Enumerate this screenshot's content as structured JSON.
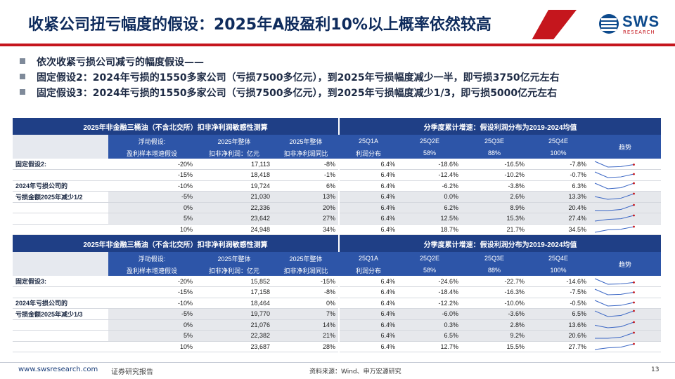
{
  "title": "收紧公司扭亏幅度的假设：2025年A股盈利10%以上概率依然较高",
  "logo": {
    "word": "SWS",
    "sub": "RESEARCH"
  },
  "bullets": [
    "依次收紧亏损公司减亏的幅度假设——",
    "固定假设2：2024年亏损的1550多家公司（亏损7500多亿元），到2025年亏损幅度减少一半，即亏损3750亿元左右",
    "固定假设3：2024年亏损的1550多家公司（亏损7500多亿元），到2025年亏损幅度减少1/3，即亏损5000亿元左右"
  ],
  "tables": [
    {
      "caption_left": "2025年非金融三桶油（不含北交所）扣非净利润敏感性测算",
      "caption_right": "分季度累计增速：假设利润分布为2019-2024均值",
      "headers_top": [
        "浮动假设:",
        "2025年整体",
        "2025年整体",
        "25Q1A",
        "25Q2E",
        "25Q3E",
        "25Q4E",
        "趋势"
      ],
      "headers_bottom": [
        "盈利样本增速假设",
        "扣非净利润：亿元",
        "扣非净利润同比",
        "利润分布",
        "58%",
        "88%",
        "100%",
        ""
      ],
      "side_labels": [
        "固定假设2:",
        "2024年亏损公司的",
        "亏损金额2025年减少1/2"
      ],
      "rows": [
        {
          "assump": "-20%",
          "profit": "17,113",
          "yoy": "-8%",
          "q1": "6.4%",
          "q2": "-18.6%",
          "q3": "-16.5%",
          "q4": "-7.8%"
        },
        {
          "assump": "-15%",
          "profit": "18,418",
          "yoy": "-1%",
          "q1": "6.4%",
          "q2": "-12.4%",
          "q3": "-10.2%",
          "q4": "-0.7%"
        },
        {
          "assump": "-10%",
          "profit": "19,724",
          "yoy": "6%",
          "q1": "6.4%",
          "q2": "-6.2%",
          "q3": "-3.8%",
          "q4": "6.3%"
        },
        {
          "assump": "-5%",
          "profit": "21,030",
          "yoy": "13%",
          "q1": "6.4%",
          "q2": "0.0%",
          "q3": "2.6%",
          "q4": "13.3%"
        },
        {
          "assump": "0%",
          "profit": "22,336",
          "yoy": "20%",
          "q1": "6.4%",
          "q2": "6.2%",
          "q3": "8.9%",
          "q4": "20.4%"
        },
        {
          "assump": "5%",
          "profit": "23,642",
          "yoy": "27%",
          "q1": "6.4%",
          "q2": "12.5%",
          "q3": "15.3%",
          "q4": "27.4%"
        },
        {
          "assump": "10%",
          "profit": "24,948",
          "yoy": "34%",
          "q1": "6.4%",
          "q2": "18.7%",
          "q3": "21.7%",
          "q4": "34.5%"
        }
      ]
    },
    {
      "caption_left": "2025年非金融三桶油（不含北交所）扣非净利润敏感性测算",
      "caption_right": "分季度累计增速：假设利润分布为2019-2024均值",
      "headers_top": [
        "浮动假设:",
        "2025年整体",
        "2025年整体",
        "25Q1A",
        "25Q2E",
        "25Q3E",
        "25Q4E",
        "趋势"
      ],
      "headers_bottom": [
        "盈利样本增速假设",
        "扣非净利润：亿元",
        "扣非净利润同比",
        "利润分布",
        "58%",
        "88%",
        "100%",
        ""
      ],
      "side_labels": [
        "固定假设3:",
        "2024年亏损公司的",
        "亏损金额2025年减少1/3"
      ],
      "rows": [
        {
          "assump": "-20%",
          "profit": "15,852",
          "yoy": "-15%",
          "q1": "6.4%",
          "q2": "-24.6%",
          "q3": "-22.7%",
          "q4": "-14.6%"
        },
        {
          "assump": "-15%",
          "profit": "17,158",
          "yoy": "-8%",
          "q1": "6.4%",
          "q2": "-18.4%",
          "q3": "-16.3%",
          "q4": "-7.5%"
        },
        {
          "assump": "-10%",
          "profit": "18,464",
          "yoy": "0%",
          "q1": "6.4%",
          "q2": "-12.2%",
          "q3": "-10.0%",
          "q4": "-0.5%"
        },
        {
          "assump": "-5%",
          "profit": "19,770",
          "yoy": "7%",
          "q1": "6.4%",
          "q2": "-6.0%",
          "q3": "-3.6%",
          "q4": "6.5%"
        },
        {
          "assump": "0%",
          "profit": "21,076",
          "yoy": "14%",
          "q1": "6.4%",
          "q2": "0.3%",
          "q3": "2.8%",
          "q4": "13.6%"
        },
        {
          "assump": "5%",
          "profit": "22,382",
          "yoy": "21%",
          "q1": "6.4%",
          "q2": "6.5%",
          "q3": "9.2%",
          "q4": "20.6%"
        },
        {
          "assump": "10%",
          "profit": "23,687",
          "yoy": "28%",
          "q1": "6.4%",
          "q2": "12.7%",
          "q3": "15.5%",
          "q4": "27.7%"
        }
      ]
    }
  ],
  "footer": {
    "url": "www.swsresearch.com",
    "type": "证券研究报告",
    "source": "资料来源：Wind、申万宏源研究",
    "page": "13"
  },
  "colors": {
    "brand_red": "#c5161d",
    "header_navy": "#1f3f86",
    "sub_header": "#2d55a8",
    "spark_line": "#3a66c4",
    "spark_end": "#c5161d"
  }
}
